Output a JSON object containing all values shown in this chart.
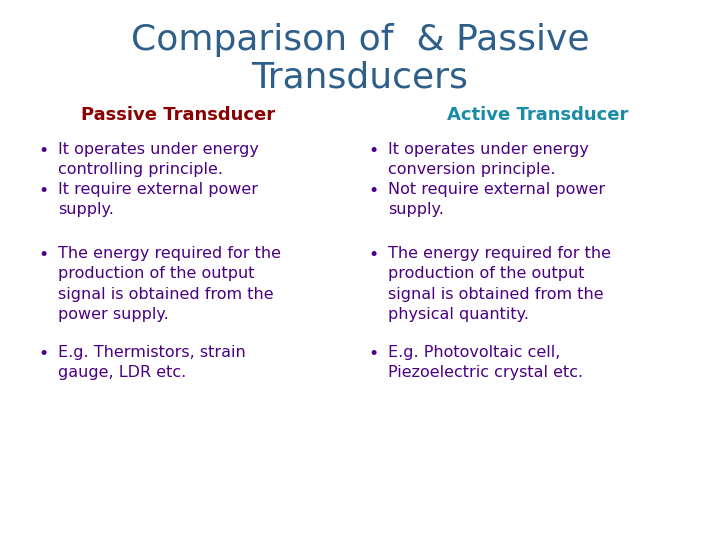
{
  "title_line1": "Comparison of  & Passive",
  "title_line2": "Transducers",
  "title_color": "#2E5F8A",
  "title_fontsize": 26,
  "passive_header": "Passive Transducer",
  "active_header": "Active Transducer",
  "passive_header_color": "#8B0000",
  "active_header_color": "#1B8CA8",
  "header_fontsize": 13,
  "bullet_color": "#4B0082",
  "bullet_fontsize": 11.5,
  "background_color": "#FFFFFF",
  "passive_bullets": [
    "It operates under energy\ncontrolling principle.",
    "It require external power\nsupply.",
    "The energy required for the\nproduction of the output\nsignal is obtained from the\npower supply.",
    "E.g. Thermistors, strain\ngauge, LDR etc."
  ],
  "active_bullets": [
    "It operates under energy\nconversion principle.",
    "Not require external power\nsupply.",
    "The energy required for the\nproduction of the output\nsignal is obtained from the\nphysical quantity.",
    "E.g. Photovoltaic cell,\nPiezoelectric crystal etc."
  ]
}
